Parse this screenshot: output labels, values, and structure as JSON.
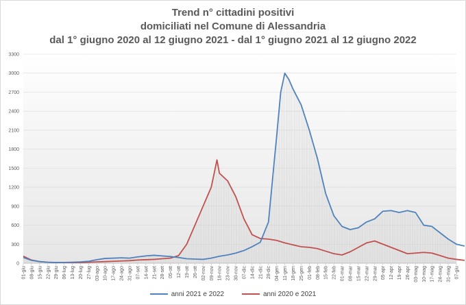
{
  "chart_data": {
    "type": "line",
    "title_lines": [
      "Trend n° cittadini positivi",
      "domiciliati nel Comune di Alessandria",
      "dal 1° giugno 2020 al 12 giugno 2021 - dal 1° giugno 2021 al 12 giugno 2022"
    ],
    "ylim": [
      0,
      3300
    ],
    "yticks": [
      0,
      300,
      600,
      900,
      1200,
      1500,
      1800,
      2100,
      2400,
      2700,
      3000,
      3300
    ],
    "xticks": [
      "01-giu",
      "08-giu",
      "15-giu",
      "22-giu",
      "29-giu",
      "06-lug",
      "13-lug",
      "20-lug",
      "27-lug",
      "03-ago",
      "10-ago",
      "17-ago",
      "24-ago",
      "31-ago",
      "07-set",
      "14-set",
      "21-set",
      "28-set",
      "05-ott",
      "12-ott",
      "19-ott",
      "26-ott",
      "02-nov",
      "09-nov",
      "16-nov",
      "23-nov",
      "30-nov",
      "07-dic",
      "14-dic",
      "21-dic",
      "28-dic",
      "04-gen",
      "11-gen",
      "18-gen",
      "25-gen",
      "01-feb",
      "08-feb",
      "15-feb",
      "22-feb",
      "01-mar",
      "08-mar",
      "15-mar",
      "22-mar",
      "29-mar",
      "05-apr",
      "12-apr",
      "19-apr",
      "26-apr",
      "03-mag",
      "10-mag",
      "17-mag",
      "24-mag",
      "31-mag",
      "07-giu"
    ],
    "grid": true,
    "legend_position": "bottom",
    "series": [
      {
        "name": "anni 2021 e 2022",
        "color": "#4f81bd",
        "points": [
          [
            0,
            90
          ],
          [
            1,
            45
          ],
          [
            2,
            25
          ],
          [
            3,
            15
          ],
          [
            4,
            10
          ],
          [
            5,
            12
          ],
          [
            6,
            15
          ],
          [
            7,
            20
          ],
          [
            8,
            30
          ],
          [
            9,
            55
          ],
          [
            10,
            75
          ],
          [
            11,
            80
          ],
          [
            12,
            85
          ],
          [
            13,
            80
          ],
          [
            14,
            100
          ],
          [
            15,
            115
          ],
          [
            16,
            125
          ],
          [
            17,
            115
          ],
          [
            18,
            105
          ],
          [
            19,
            90
          ],
          [
            20,
            70
          ],
          [
            21,
            65
          ],
          [
            22,
            60
          ],
          [
            23,
            80
          ],
          [
            24,
            110
          ],
          [
            25,
            130
          ],
          [
            26,
            160
          ],
          [
            27,
            200
          ],
          [
            28,
            260
          ],
          [
            29,
            330
          ],
          [
            30,
            650
          ],
          [
            31,
            2000
          ],
          [
            31.5,
            2700
          ],
          [
            32,
            3000
          ],
          [
            32.5,
            2900
          ],
          [
            33,
            2750
          ],
          [
            34,
            2500
          ],
          [
            35,
            2100
          ],
          [
            36,
            1650
          ],
          [
            37,
            1100
          ],
          [
            38,
            750
          ],
          [
            39,
            580
          ],
          [
            40,
            530
          ],
          [
            41,
            560
          ],
          [
            42,
            650
          ],
          [
            43,
            700
          ],
          [
            44,
            820
          ],
          [
            45,
            830
          ],
          [
            46,
            800
          ],
          [
            47,
            830
          ],
          [
            48,
            800
          ],
          [
            49,
            600
          ],
          [
            50,
            580
          ],
          [
            51,
            480
          ],
          [
            52,
            380
          ],
          [
            53,
            300
          ],
          [
            54,
            270
          ]
        ]
      },
      {
        "name": "anni 2020 e 2021",
        "color": "#c0504d",
        "points": [
          [
            0,
            110
          ],
          [
            1,
            50
          ],
          [
            2,
            25
          ],
          [
            3,
            15
          ],
          [
            4,
            10
          ],
          [
            5,
            10
          ],
          [
            6,
            10
          ],
          [
            7,
            10
          ],
          [
            8,
            15
          ],
          [
            9,
            20
          ],
          [
            10,
            25
          ],
          [
            11,
            30
          ],
          [
            12,
            35
          ],
          [
            13,
            40
          ],
          [
            14,
            50
          ],
          [
            15,
            55
          ],
          [
            16,
            60
          ],
          [
            17,
            70
          ],
          [
            18,
            80
          ],
          [
            19,
            120
          ],
          [
            20,
            300
          ],
          [
            21,
            600
          ],
          [
            22,
            900
          ],
          [
            23,
            1200
          ],
          [
            23.7,
            1630
          ],
          [
            24,
            1420
          ],
          [
            25,
            1300
          ],
          [
            26,
            1050
          ],
          [
            27,
            700
          ],
          [
            28,
            450
          ],
          [
            29,
            390
          ],
          [
            30,
            380
          ],
          [
            31,
            360
          ],
          [
            32,
            320
          ],
          [
            33,
            290
          ],
          [
            34,
            260
          ],
          [
            35,
            250
          ],
          [
            36,
            230
          ],
          [
            37,
            190
          ],
          [
            38,
            150
          ],
          [
            39,
            130
          ],
          [
            40,
            180
          ],
          [
            41,
            250
          ],
          [
            42,
            320
          ],
          [
            43,
            350
          ],
          [
            44,
            300
          ],
          [
            45,
            250
          ],
          [
            46,
            200
          ],
          [
            47,
            150
          ],
          [
            48,
            160
          ],
          [
            49,
            170
          ],
          [
            50,
            160
          ],
          [
            51,
            120
          ],
          [
            52,
            80
          ],
          [
            53,
            60
          ],
          [
            54,
            45
          ]
        ]
      }
    ]
  }
}
